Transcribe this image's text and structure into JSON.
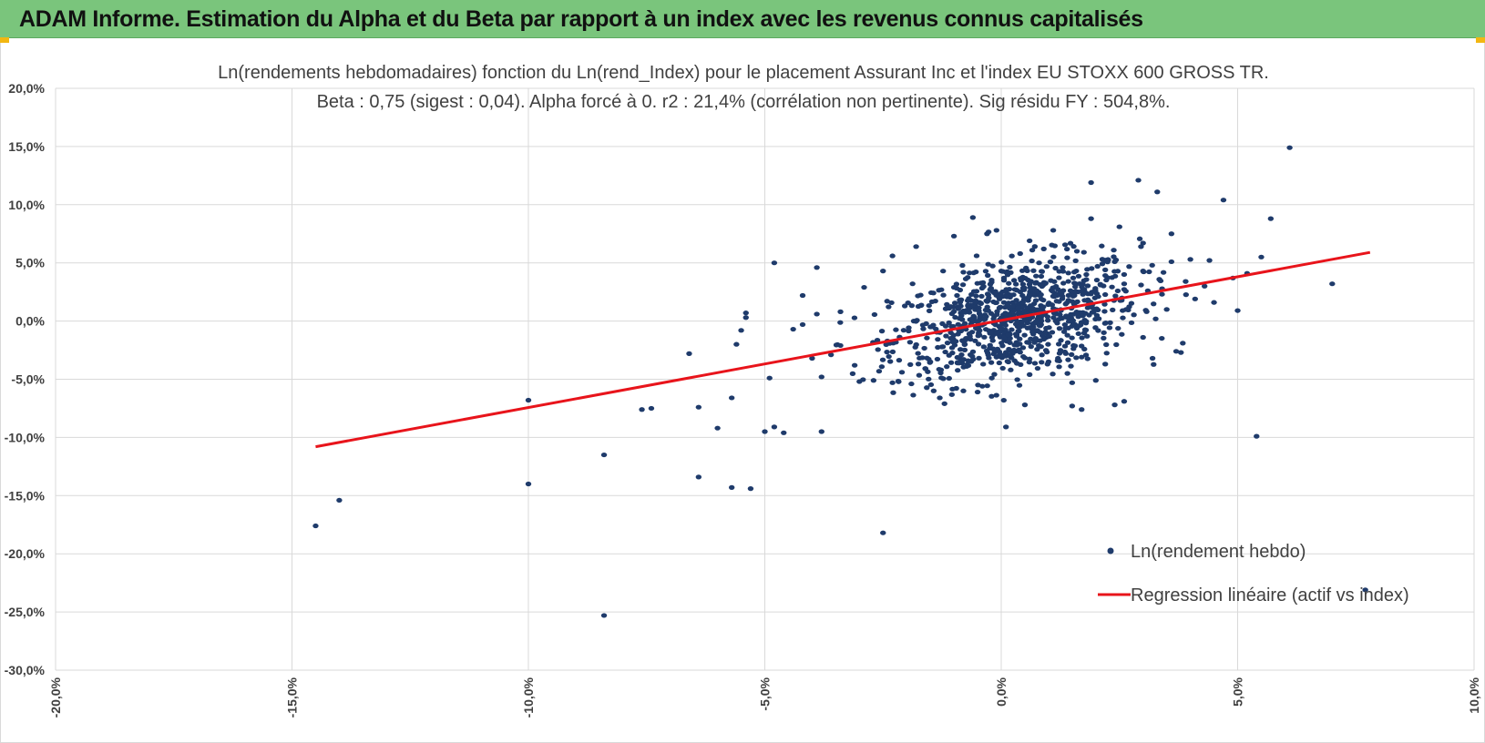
{
  "header": {
    "title": "ADAM Informe. Estimation du Alpha et du Beta par rapport à un index avec les revenus connus capitalisés"
  },
  "colors": {
    "header_bg": "#7ac57c",
    "points": "#1f3b6b",
    "regression": "#e8141b",
    "grid": "#d9d9d9",
    "corner_accent": "#f2b712"
  },
  "chart_data": {
    "type": "scatter",
    "title_line1": "Ln(rendements hebdomadaires) fonction du Ln(rend_Index) pour le placement Assurant Inc et l'index EU STOXX 600 GROSS TR.",
    "title_line2": "Beta : 0,75 (sigest : 0,04). Alpha forcé à 0. r2 : 21,4% (corrélation non pertinente). Sig résidu FY : 504,8%.",
    "xlim": [
      -20,
      10
    ],
    "ylim": [
      -30,
      20
    ],
    "x_ticks": [
      "-20,0%",
      "-15,0%",
      "-10,0%",
      "-5,0%",
      "0,0%",
      "5,0%",
      "10,0%"
    ],
    "y_ticks": [
      "20,0%",
      "15,0%",
      "10,0%",
      "5,0%",
      "0,0%",
      "-5,0%",
      "-10,0%",
      "-15,0%",
      "-20,0%",
      "-25,0%",
      "-30,0%"
    ],
    "grid": true,
    "legend_position": "bottom-right",
    "series": [
      {
        "name": "Ln(rendement hebdo)",
        "kind": "scatter",
        "points": [
          [
            -14.5,
            -17.6
          ],
          [
            -14.0,
            -15.4
          ],
          [
            -10.0,
            -6.8
          ],
          [
            -10.0,
            -14.0
          ],
          [
            -8.4,
            -11.5
          ],
          [
            -8.4,
            -25.3
          ],
          [
            -7.6,
            -7.6
          ],
          [
            -7.4,
            -7.5
          ],
          [
            -6.6,
            -2.8
          ],
          [
            -6.4,
            -7.4
          ],
          [
            -6.4,
            -13.4
          ],
          [
            -6.0,
            -9.2
          ],
          [
            -5.7,
            -14.3
          ],
          [
            -5.7,
            -6.6
          ],
          [
            -5.6,
            -2.0
          ],
          [
            -5.5,
            -0.8
          ],
          [
            -5.4,
            0.3
          ],
          [
            -5.4,
            0.7
          ],
          [
            -5.3,
            -14.4
          ],
          [
            -5.0,
            -9.5
          ],
          [
            -4.9,
            -4.9
          ],
          [
            -4.8,
            -9.1
          ],
          [
            -4.8,
            5.0
          ],
          [
            -4.6,
            -9.6
          ],
          [
            -4.4,
            -0.7
          ],
          [
            -4.2,
            -0.3
          ],
          [
            -4.0,
            -3.2
          ],
          [
            -3.9,
            4.6
          ],
          [
            -3.8,
            -9.5
          ],
          [
            -3.8,
            -4.8
          ],
          [
            -3.4,
            -2.1
          ],
          [
            -3.0,
            -5.2
          ],
          [
            -2.9,
            2.9
          ],
          [
            -2.7,
            -5.1
          ],
          [
            -2.5,
            4.3
          ],
          [
            -2.5,
            -18.2
          ],
          [
            -2.3,
            -5.3
          ],
          [
            -2.3,
            5.6
          ],
          [
            -1.8,
            6.4
          ],
          [
            -1.5,
            -3.5
          ],
          [
            -1.3,
            -6.6
          ],
          [
            -1.2,
            -7.1
          ],
          [
            -1.0,
            7.3
          ],
          [
            -0.8,
            -6.0
          ],
          [
            -0.6,
            8.9
          ],
          [
            -0.5,
            -6.1
          ],
          [
            -0.3,
            7.5
          ],
          [
            -0.2,
            -4.9
          ],
          [
            -0.1,
            7.8
          ],
          [
            0.1,
            -9.1
          ],
          [
            0.2,
            -4.2
          ],
          [
            0.4,
            5.8
          ],
          [
            0.5,
            -7.2
          ],
          [
            0.6,
            6.9
          ],
          [
            0.9,
            6.2
          ],
          [
            1.1,
            7.8
          ],
          [
            1.2,
            -3.2
          ],
          [
            1.4,
            -4.5
          ],
          [
            1.5,
            -7.3
          ],
          [
            1.6,
            6.0
          ],
          [
            1.7,
            -7.6
          ],
          [
            1.9,
            11.9
          ],
          [
            1.9,
            8.8
          ],
          [
            2.0,
            -5.1
          ],
          [
            2.1,
            3.1
          ],
          [
            2.2,
            4.4
          ],
          [
            2.4,
            5.1
          ],
          [
            2.4,
            -7.2
          ],
          [
            2.5,
            8.1
          ],
          [
            2.6,
            -6.9
          ],
          [
            2.9,
            12.1
          ],
          [
            3.0,
            4.3
          ],
          [
            3.0,
            6.7
          ],
          [
            3.3,
            11.1
          ],
          [
            3.4,
            2.3
          ],
          [
            3.6,
            7.5
          ],
          [
            3.6,
            5.1
          ],
          [
            3.9,
            3.4
          ],
          [
            4.0,
            5.3
          ],
          [
            4.1,
            1.9
          ],
          [
            4.3,
            3.0
          ],
          [
            4.5,
            1.6
          ],
          [
            4.7,
            10.4
          ],
          [
            4.9,
            3.7
          ],
          [
            5.0,
            0.9
          ],
          [
            5.2,
            4.1
          ],
          [
            5.4,
            -9.9
          ],
          [
            5.5,
            5.5
          ],
          [
            5.7,
            8.8
          ],
          [
            6.1,
            14.9
          ],
          [
            7.0,
            3.2
          ],
          [
            7.7,
            -23.1
          ],
          [
            3.8,
            -2.7
          ],
          [
            3.7,
            -2.6
          ],
          [
            3.2,
            -3.2
          ],
          [
            3.0,
            -1.4
          ],
          [
            2.2,
            -3.7
          ],
          [
            1.5,
            -5.3
          ],
          [
            -0.7,
            -3.4
          ],
          [
            -1.6,
            -4.1
          ],
          [
            -2.1,
            -4.4
          ],
          [
            -3.1,
            -3.8
          ],
          [
            -3.6,
            -2.9
          ],
          [
            -1.0,
            2.9
          ],
          [
            -0.8,
            4.2
          ],
          [
            0.0,
            4.3
          ],
          [
            0.8,
            5.0
          ],
          [
            1.3,
            4.6
          ],
          [
            1.8,
            4.0
          ],
          [
            2.6,
            3.2
          ],
          [
            3.1,
            2.6
          ],
          [
            3.5,
            1.0
          ],
          [
            -3.4,
            0.8
          ],
          [
            -3.9,
            0.6
          ],
          [
            -4.2,
            2.2
          ],
          [
            -0.1,
            -3.1
          ],
          [
            0.3,
            -2.6
          ],
          [
            1.0,
            -3.5
          ],
          [
            0.6,
            -4.6
          ],
          [
            -0.4,
            -5.6
          ]
        ]
      },
      {
        "name": "Regression linéaire (actif vs index)",
        "kind": "line",
        "points": [
          [
            -14.5,
            -10.8
          ],
          [
            7.8,
            5.9
          ]
        ]
      }
    ]
  }
}
